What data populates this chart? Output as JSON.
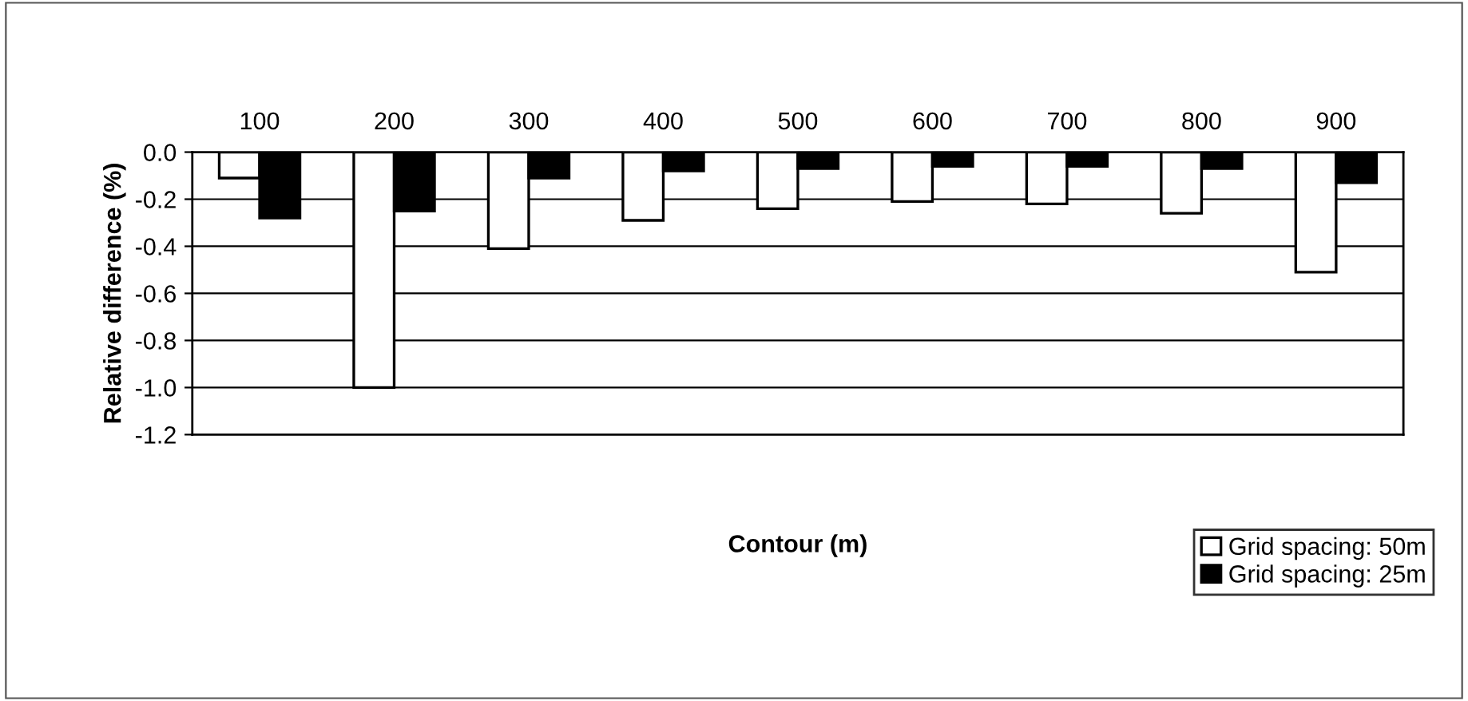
{
  "chart_data": {
    "type": "bar",
    "xlabel": "Contour (m)",
    "ylabel": "Relative difference (%)",
    "categories": [
      "100",
      "200",
      "300",
      "400",
      "500",
      "600",
      "700",
      "800",
      "900"
    ],
    "series": [
      {
        "name": "Grid spacing: 50m",
        "color": "#ffffff",
        "values": [
          -0.11,
          -1.0,
          -0.41,
          -0.29,
          -0.24,
          -0.21,
          -0.22,
          -0.26,
          -0.51
        ]
      },
      {
        "name": "Grid spacing: 25m",
        "color": "#000000",
        "values": [
          -0.28,
          -0.25,
          -0.11,
          -0.08,
          -0.07,
          -0.06,
          -0.06,
          -0.07,
          -0.13
        ]
      }
    ],
    "ylim": [
      -1.2,
      0.0
    ],
    "yticks": [
      {
        "value": -1.2,
        "label": "-1.2"
      },
      {
        "value": -1.0,
        "label": "-1.0"
      },
      {
        "value": -0.8,
        "label": "-0.8"
      },
      {
        "value": -0.6,
        "label": "-0.6"
      },
      {
        "value": -0.4,
        "label": "-0.4"
      },
      {
        "value": -0.2,
        "label": "-0.2"
      },
      {
        "value": 0.0,
        "label": "0.0"
      }
    ],
    "grid": "y",
    "legend": "bottom right"
  }
}
